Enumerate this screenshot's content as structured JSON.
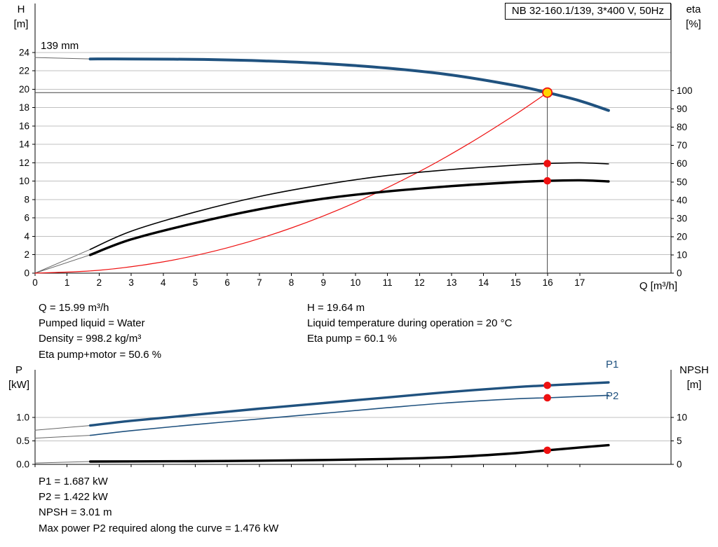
{
  "title_box": {
    "label": "NB 32-160.1/139, 3*400 V, 50Hz"
  },
  "axis_units": {
    "top_left": [
      "H",
      "[m]"
    ],
    "top_right": [
      "eta",
      "[%]"
    ],
    "x": "Q [m³/h]",
    "bottom_left": [
      "P",
      "[kW]"
    ],
    "bottom_right": [
      "NPSH",
      "[m]"
    ]
  },
  "curve_labels": {
    "impeller": "139 mm",
    "p1": "P1",
    "p2": "P2"
  },
  "info_top_left": [
    "Q = 15.99 m³/h",
    "Pumped liquid = Water",
    "Density = 998.2 kg/m³",
    "Eta pump+motor = 50.6 %"
  ],
  "info_top_right": [
    "H = 19.64 m",
    "Liquid temperature during operation = 20 °C",
    "Eta pump = 60.1 %"
  ],
  "info_bottom": [
    "P1 = 1.687 kW",
    "P2 = 1.422 kW",
    "NPSH = 3.01 m",
    "Max power P2 required along the curve = 1.476 kW"
  ],
  "colors": {
    "blue": "#20527f",
    "red": "#ee1111",
    "black": "#000000",
    "leader": "#666666",
    "grid": "#c0c0c0",
    "guide": "#444444",
    "duty_yellow": "#ffd400",
    "axis": "#000000"
  },
  "chart_data": [
    {
      "id": "qh-eta-chart",
      "type": "line",
      "title": "NB 32-160.1/139, 3*400 V, 50Hz",
      "xlabel": "Q [m³/h]",
      "ylabel_left": "H [m]",
      "ylabel_right": "eta [%]",
      "x_range": [
        0,
        19.85
      ],
      "xticks": [
        0,
        1,
        2,
        3,
        4,
        5,
        6,
        7,
        8,
        9,
        10,
        11,
        12,
        13,
        14,
        15,
        16,
        17
      ],
      "show_x_labels": true,
      "yleft_range": [
        0,
        29.33
      ],
      "yticks_left": [
        "0",
        "2",
        "4",
        "6",
        "8",
        "10",
        "12",
        "14",
        "16",
        "18",
        "20",
        "22",
        "24"
      ],
      "yright_range": [
        0,
        147.8
      ],
      "yticks_right": [
        "0",
        "10",
        "20",
        "30",
        "40",
        "50",
        "60",
        "70",
        "80",
        "90",
        "100"
      ],
      "grid": "horizontal",
      "duty_lines": {
        "x": 15.99,
        "y": 19.64
      },
      "duty_values": {
        "q_m3h": 15.99,
        "h_m": 19.64,
        "eta_pump_pct": 60.1,
        "eta_pump_motor_pct": 50.6,
        "pumped_liquid": "Water",
        "density_kg_m3": 998.2,
        "liquid_temp_c": 20,
        "impeller_mm": 139
      },
      "series": [
        {
          "name": "qh-leader-line",
          "axis": "left",
          "color": "leader",
          "width": 1,
          "x": [
            0,
            1.72
          ],
          "y": [
            23.45,
            23.3
          ]
        },
        {
          "name": "eta-pump-leader-line",
          "axis": "right",
          "color": "leader",
          "width": 1,
          "x": [
            0,
            1.72
          ],
          "y": [
            0,
            13
          ]
        },
        {
          "name": "eta-pump-motor-leader-line",
          "axis": "right",
          "color": "leader",
          "width": 1,
          "x": [
            0,
            1.72
          ],
          "y": [
            0,
            10
          ]
        },
        {
          "name": "system-curve",
          "axis": "left",
          "color": "red",
          "width": 1.2,
          "x": [
            0,
            2,
            4,
            6,
            8,
            10,
            12,
            13.5,
            15,
            15.99
          ],
          "y": [
            0,
            0.31,
            1.23,
            2.76,
            4.91,
            7.68,
            11.06,
            14.0,
            17.28,
            19.64
          ]
        },
        {
          "name": "eta-pump-curve",
          "axis": "right",
          "color": "black",
          "width": 1.6,
          "x": [
            1.72,
            3,
            5,
            7,
            9,
            11,
            13,
            15,
            15.99,
            17,
            17.9
          ],
          "y": [
            13,
            23,
            33.5,
            42,
            48.5,
            53.5,
            56.8,
            59.2,
            60.1,
            60.5,
            59.9
          ]
        },
        {
          "name": "eta-pump-motor-curve",
          "axis": "right",
          "color": "black",
          "width": 3.4,
          "x": [
            1.72,
            3,
            5,
            7,
            9,
            11,
            13,
            15,
            15.99,
            17,
            17.9
          ],
          "y": [
            10,
            18.5,
            27.5,
            35,
            40.8,
            44.8,
            47.7,
            49.9,
            50.6,
            50.9,
            50.3
          ]
        },
        {
          "name": "qh-curve-139mm",
          "axis": "left",
          "color": "blue",
          "width": 4,
          "x": [
            1.72,
            3,
            5,
            7,
            9,
            11,
            13,
            15,
            15.99,
            17,
            17.9
          ],
          "y": [
            23.3,
            23.3,
            23.25,
            23.1,
            22.8,
            22.3,
            21.55,
            20.4,
            19.64,
            18.75,
            17.7
          ]
        }
      ],
      "markers": [
        {
          "name": "eta-pump-dot",
          "axis": "right",
          "x": 15.99,
          "v": 60.1,
          "type": "dot"
        },
        {
          "name": "eta-pump-motor-dot",
          "axis": "right",
          "x": 15.99,
          "v": 50.6,
          "type": "dot"
        },
        {
          "name": "duty-point",
          "axis": "left",
          "x": 15.99,
          "v": 19.64,
          "type": "duty"
        }
      ]
    },
    {
      "id": "power-npsh-chart",
      "type": "line",
      "xlabel": "Q [m³/h]",
      "ylabel_left": "P [kW]",
      "ylabel_right": "NPSH [m]",
      "x_range": [
        0,
        19.85
      ],
      "xticks": [
        0,
        1,
        2,
        3,
        4,
        5,
        6,
        7,
        8,
        9,
        10,
        11,
        12,
        13,
        14,
        15,
        16,
        17
      ],
      "show_x_labels": false,
      "yleft_range": [
        0,
        2.02
      ],
      "yticks_left": [
        "0.0",
        "0.5",
        "1.0"
      ],
      "yright_range": [
        0,
        20.2
      ],
      "yticks_right": [
        "0",
        "5",
        "10"
      ],
      "grid": "horizontal",
      "values": {
        "p1_kw": 1.687,
        "p2_kw": 1.422,
        "npsh_m": 3.01,
        "max_p2_kw": 1.476
      },
      "series": [
        {
          "name": "p1-leader-line",
          "axis": "left",
          "color": "leader",
          "width": 1,
          "x": [
            0,
            1.72
          ],
          "y": [
            0.73,
            0.83
          ]
        },
        {
          "name": "p2-leader-line",
          "axis": "left",
          "color": "leader",
          "width": 1,
          "x": [
            0,
            1.72
          ],
          "y": [
            0.56,
            0.62
          ]
        },
        {
          "name": "npsh-leader-line",
          "axis": "right",
          "color": "leader",
          "width": 1,
          "x": [
            0,
            1.72
          ],
          "y": [
            0.28,
            0.6
          ]
        },
        {
          "name": "p2-curve",
          "axis": "left",
          "color": "blue",
          "width": 1.6,
          "x": [
            1.72,
            3,
            5,
            7,
            9,
            11,
            13,
            15,
            15.99,
            17,
            17.9
          ],
          "y": [
            0.62,
            0.72,
            0.85,
            0.97,
            1.09,
            1.21,
            1.32,
            1.4,
            1.422,
            1.45,
            1.476
          ]
        },
        {
          "name": "p1-curve",
          "axis": "left",
          "color": "blue",
          "width": 3.4,
          "x": [
            1.72,
            3,
            5,
            7,
            9,
            11,
            13,
            15,
            15.99,
            17,
            17.9
          ],
          "y": [
            0.83,
            0.93,
            1.06,
            1.19,
            1.31,
            1.43,
            1.55,
            1.65,
            1.687,
            1.72,
            1.75
          ]
        },
        {
          "name": "npsh-curve",
          "axis": "right",
          "color": "black",
          "width": 3.4,
          "x": [
            1.72,
            3,
            5,
            7,
            9,
            11,
            13,
            15,
            15.99,
            17,
            17.9
          ],
          "y": [
            0.6,
            0.63,
            0.68,
            0.78,
            0.93,
            1.15,
            1.55,
            2.4,
            3.01,
            3.6,
            4.1
          ]
        }
      ],
      "markers": [
        {
          "name": "p1-dot",
          "axis": "left",
          "x": 15.99,
          "v": 1.687,
          "type": "dot"
        },
        {
          "name": "p2-dot",
          "axis": "left",
          "x": 15.99,
          "v": 1.422,
          "type": "dot"
        },
        {
          "name": "npsh-dot",
          "axis": "right",
          "x": 15.99,
          "v": 3.01,
          "type": "dot"
        }
      ]
    }
  ]
}
